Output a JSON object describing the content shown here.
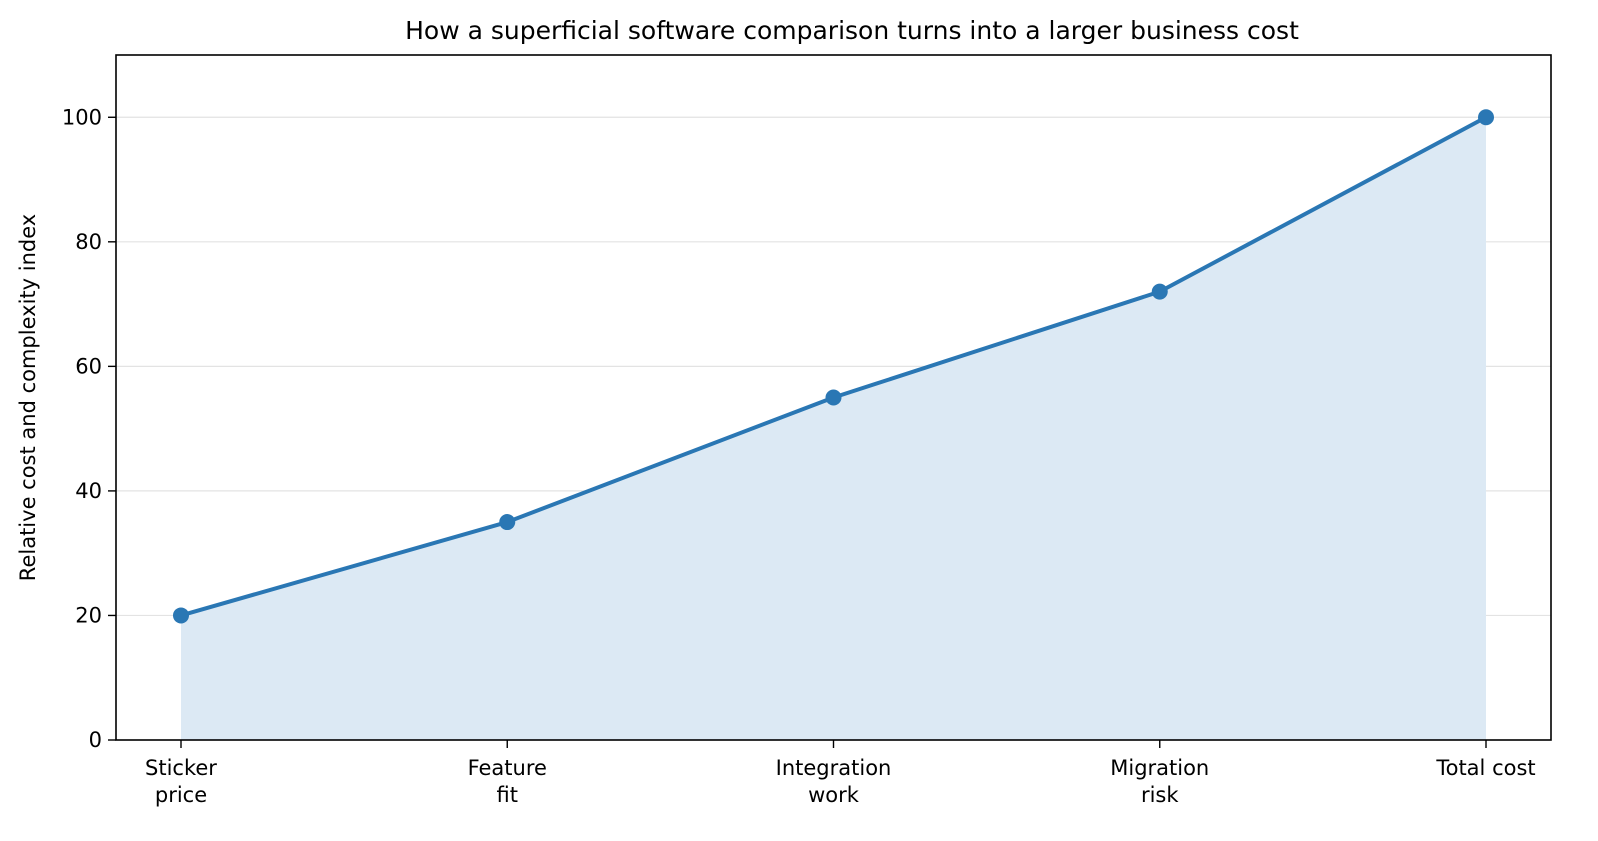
{
  "chart_data": {
    "type": "area",
    "title": "How a superficial software comparison turns into a larger business cost",
    "xlabel": "",
    "ylabel": "Relative cost and complexity index",
    "categories": [
      [
        "Sticker",
        "price"
      ],
      [
        "Feature",
        "fit"
      ],
      [
        "Integration",
        "work"
      ],
      [
        "Migration",
        "risk"
      ],
      [
        "Total cost"
      ]
    ],
    "series": [
      {
        "values": [
          20,
          35,
          55,
          72,
          100
        ]
      }
    ],
    "ylim": [
      0,
      110
    ],
    "yticks": [
      0,
      20,
      40,
      60,
      80,
      100
    ],
    "grid": "horizontal",
    "legend": "none",
    "colors": {
      "line": "#2a77b4",
      "fill": "#dce9f4",
      "grid": "#e3e3e3",
      "axis": "#000000"
    }
  }
}
